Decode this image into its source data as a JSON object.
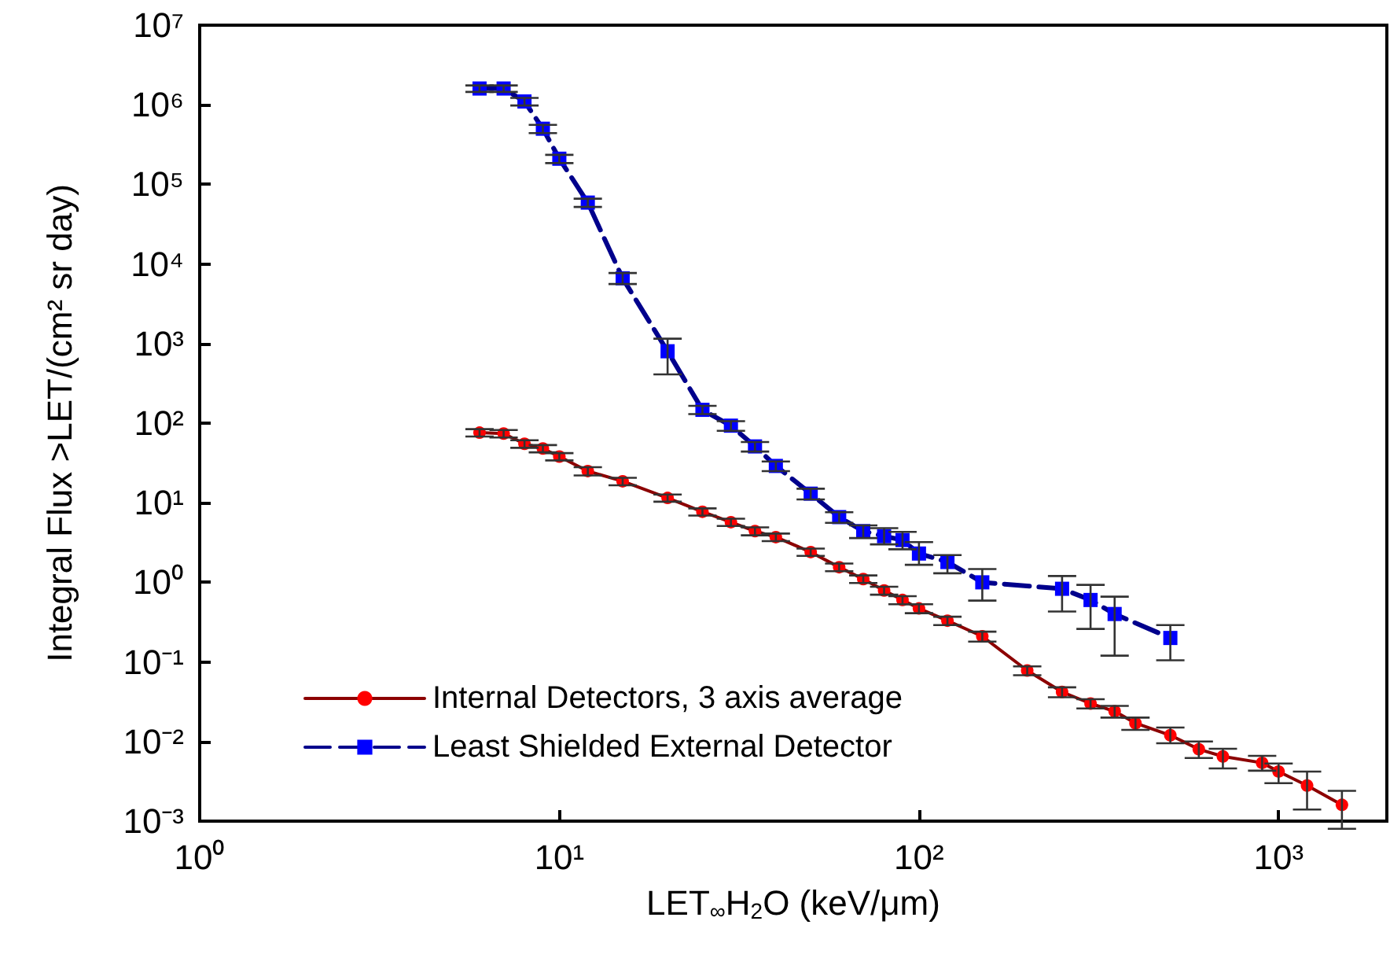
{
  "chart_data": {
    "type": "line",
    "xlabel": "LET$_{∞}$H$_{2}$O (keV/μm)",
    "ylabel": "Integral Flux >LET/(cm² sr day)",
    "log": "xy",
    "xlim": [
      1,
      2000
    ],
    "xticks": [
      {
        "value": 1,
        "label": "10⁰"
      },
      {
        "value": 10,
        "label": "10¹"
      },
      {
        "value": 100,
        "label": "10²"
      },
      {
        "value": 1000,
        "label": "10³"
      }
    ],
    "ylim": [
      0.001,
      10000000
    ],
    "yticks": [
      {
        "value": 0.001,
        "label": "10⁻³"
      },
      {
        "value": 0.01,
        "label": "10⁻²"
      },
      {
        "value": 0.1,
        "label": "10⁻¹"
      },
      {
        "value": 1,
        "label": "10⁰"
      },
      {
        "value": 10,
        "label": "10¹"
      },
      {
        "value": 100,
        "label": "10²"
      },
      {
        "value": 1000,
        "label": "10³"
      },
      {
        "value": 10000,
        "label": "10⁴"
      },
      {
        "value": 100000,
        "label": "10⁵"
      },
      {
        "value": 1000000,
        "label": "10⁶"
      },
      {
        "value": 10000000,
        "label": "10⁷"
      }
    ],
    "grid": false,
    "legend": "bottom left",
    "series": [
      {
        "name": "Internal Detectors, 3 axis average",
        "color": "#ff0000",
        "marker": "circle",
        "line_style": "solid",
        "x": [
          6,
          7,
          8,
          9,
          10,
          12,
          15,
          20,
          25,
          30,
          35,
          40,
          50,
          60,
          70,
          80,
          90,
          100,
          120,
          150,
          200,
          250,
          300,
          350,
          400,
          500,
          600,
          700,
          900,
          1000,
          1200,
          1500
        ],
        "values": [
          76,
          74,
          55,
          48,
          38,
          25,
          18.6,
          11.5,
          7.7,
          5.7,
          4.4,
          3.7,
          2.4,
          1.55,
          1.1,
          0.79,
          0.6,
          0.47,
          0.33,
          0.21,
          0.078,
          0.042,
          0.03,
          0.024,
          0.017,
          0.012,
          0.008,
          0.0065,
          0.0054,
          0.0042,
          0.0028,
          0.0016
        ],
        "errors": [
          [
            68,
            84
          ],
          [
            66,
            82
          ],
          [
            49,
            61
          ],
          [
            43,
            53
          ],
          [
            34,
            42
          ],
          [
            22,
            28
          ],
          [
            16.6,
            20.6
          ],
          [
            10.3,
            12.7
          ],
          [
            6.9,
            8.5
          ],
          [
            5.1,
            6.3
          ],
          [
            3.9,
            4.9
          ],
          [
            3.3,
            4.1
          ],
          [
            2.15,
            2.65
          ],
          [
            1.38,
            1.72
          ],
          [
            0.98,
            1.22
          ],
          [
            0.7,
            0.88
          ],
          [
            0.53,
            0.67
          ],
          [
            0.41,
            0.53
          ],
          [
            0.29,
            0.37
          ],
          [
            0.18,
            0.24
          ],
          [
            0.068,
            0.088
          ],
          [
            0.036,
            0.048
          ],
          [
            0.026,
            0.034
          ],
          [
            0.02,
            0.028
          ],
          [
            0.014,
            0.02
          ],
          [
            0.0095,
            0.015
          ],
          [
            0.0062,
            0.01
          ],
          [
            0.0046,
            0.0081
          ],
          [
            0.0043,
            0.0066
          ],
          [
            0.003,
            0.0053
          ],
          [
            0.0014,
            0.0042
          ],
          [
            0.0008,
            0.0024
          ]
        ]
      },
      {
        "name": "Least Shielded External Detector",
        "color": "#0000ff",
        "marker": "square",
        "line_style": "dashed",
        "x": [
          6,
          7,
          8,
          9,
          10,
          12,
          15,
          20,
          25,
          30,
          35,
          40,
          50,
          60,
          70,
          80,
          90,
          100,
          120,
          150,
          250,
          300,
          350,
          500
        ],
        "values": [
          1600000,
          1600000,
          1100000,
          500000,
          210000,
          59000,
          6600,
          800,
          147,
          93,
          51,
          29,
          13,
          6.6,
          4.4,
          3.8,
          3.4,
          2.3,
          1.8,
          1.0,
          0.83,
          0.6,
          0.4,
          0.2
        ],
        "errors": [
          [
            1450000,
            1750000
          ],
          [
            1450000,
            1750000
          ],
          [
            980000,
            1220000
          ],
          [
            440000,
            560000
          ],
          [
            185000,
            235000
          ],
          [
            52000,
            66000
          ],
          [
            5600,
            7700
          ],
          [
            410,
            1150
          ],
          [
            130,
            165
          ],
          [
            80,
            106
          ],
          [
            44,
            58
          ],
          [
            25,
            33
          ],
          [
            11,
            15
          ],
          [
            5.6,
            7.6
          ],
          [
            3.6,
            5.2
          ],
          [
            3.0,
            4.8
          ],
          [
            2.6,
            4.3
          ],
          [
            1.66,
            3.2
          ],
          [
            1.3,
            2.2
          ],
          [
            0.59,
            1.47
          ],
          [
            0.43,
            1.2
          ],
          [
            0.26,
            0.93
          ],
          [
            0.12,
            0.66
          ],
          [
            0.105,
            0.29
          ]
        ]
      }
    ]
  }
}
